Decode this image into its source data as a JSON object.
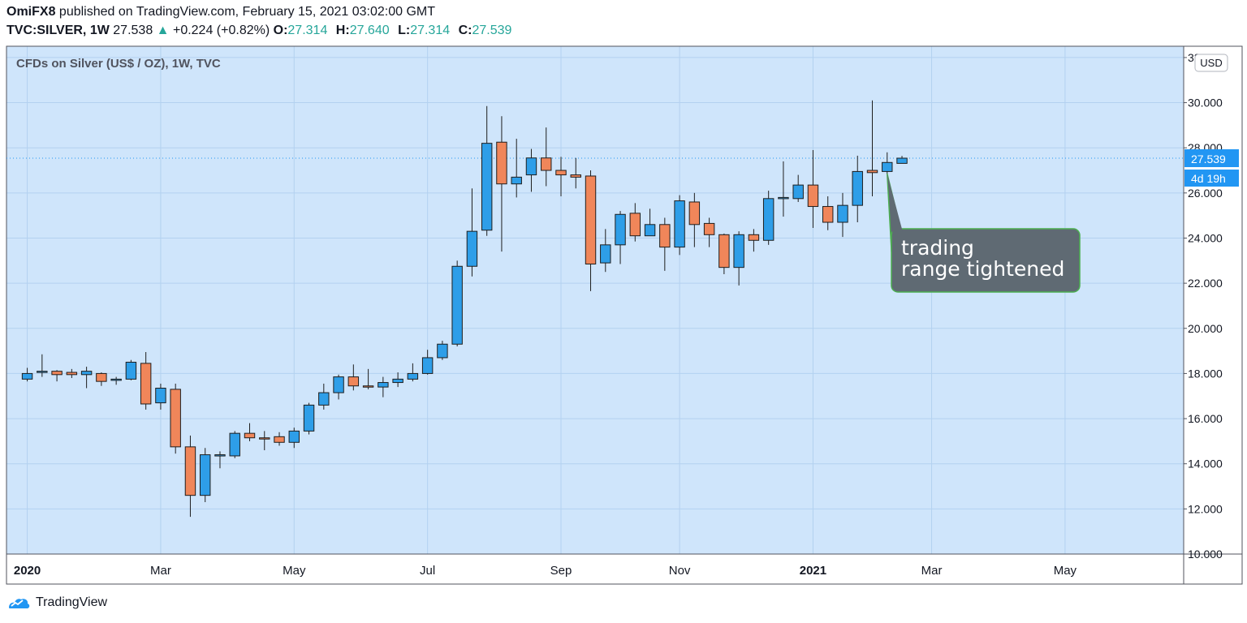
{
  "header": {
    "author": "OmiFX8",
    "published_text": "published on TradingView.com, February 15, 2021 03:02:00 GMT",
    "symbol": "TVC:SILVER, 1W",
    "last": "27.538",
    "change_arrow": "▲",
    "change": "+0.224 (+0.82%)",
    "o_label": "O:",
    "o_value": "27.314",
    "h_label": "H:",
    "h_value": "27.640",
    "l_label": "L:",
    "l_value": "27.314",
    "c_label": "C:",
    "c_value": "27.539"
  },
  "footer": {
    "brand": "TradingView",
    "logo_icon": "tradingview-logo-icon"
  },
  "colors": {
    "plot_bg": "#cfe5fb",
    "grid": "#b3d1f0",
    "up": "#2e9ee8",
    "down": "#f0865a",
    "wick": "#1e1e1e",
    "price_label": "#2196f3",
    "annotation_bg": "#5f6a73",
    "annotation_border": "#4caf50"
  },
  "chart_data": {
    "type": "candlestick",
    "title": "CFDs on Silver (US$ / OZ), 1W, TVC",
    "currency": "USD",
    "y_ticks": [
      "10.000",
      "12.000",
      "14.000",
      "16.000",
      "18.000",
      "20.000",
      "22.000",
      "24.000",
      "26.000",
      "28.000",
      "30.000",
      "32.000"
    ],
    "ylim": [
      10,
      32.5
    ],
    "x_labels": [
      {
        "label": "2020",
        "index": 0,
        "bold": true
      },
      {
        "label": "Mar",
        "index": 9,
        "bold": false
      },
      {
        "label": "May",
        "index": 18,
        "bold": false
      },
      {
        "label": "Jul",
        "index": 27,
        "bold": false
      },
      {
        "label": "Sep",
        "index": 36,
        "bold": false
      },
      {
        "label": "Nov",
        "index": 44,
        "bold": false
      },
      {
        "label": "2021",
        "index": 53,
        "bold": true
      },
      {
        "label": "Mar",
        "index": 61,
        "bold": false
      },
      {
        "label": "May",
        "index": 70,
        "bold": false
      }
    ],
    "x_index_range": [
      -1.4,
      78.0
    ],
    "current_price": "27.539",
    "countdown": "4d 19h",
    "annotation": {
      "lines": [
        "trading",
        "range tightened"
      ],
      "target_index": 58
    },
    "candles": [
      {
        "o": 17.75,
        "h": 18.25,
        "l": 17.65,
        "c": 18.0
      },
      {
        "o": 18.05,
        "h": 18.85,
        "l": 17.85,
        "c": 18.1
      },
      {
        "o": 18.1,
        "h": 18.15,
        "l": 17.65,
        "c": 17.95
      },
      {
        "o": 18.05,
        "h": 18.2,
        "l": 17.8,
        "c": 17.95
      },
      {
        "o": 17.95,
        "h": 18.3,
        "l": 17.35,
        "c": 18.1
      },
      {
        "o": 18.0,
        "h": 18.05,
        "l": 17.45,
        "c": 17.65
      },
      {
        "o": 17.7,
        "h": 17.85,
        "l": 17.5,
        "c": 17.75
      },
      {
        "o": 17.75,
        "h": 18.6,
        "l": 17.7,
        "c": 18.5
      },
      {
        "o": 18.45,
        "h": 18.95,
        "l": 16.4,
        "c": 16.65
      },
      {
        "o": 16.7,
        "h": 17.55,
        "l": 16.4,
        "c": 17.35
      },
      {
        "o": 17.3,
        "h": 17.55,
        "l": 14.45,
        "c": 14.75
      },
      {
        "o": 14.75,
        "h": 15.25,
        "l": 11.65,
        "c": 12.6
      },
      {
        "o": 12.6,
        "h": 14.7,
        "l": 12.3,
        "c": 14.4
      },
      {
        "o": 14.4,
        "h": 14.55,
        "l": 13.8,
        "c": 14.4
      },
      {
        "o": 14.35,
        "h": 15.45,
        "l": 14.25,
        "c": 15.35
      },
      {
        "o": 15.35,
        "h": 15.8,
        "l": 15.0,
        "c": 15.15
      },
      {
        "o": 15.15,
        "h": 15.45,
        "l": 14.6,
        "c": 15.1
      },
      {
        "o": 15.2,
        "h": 15.4,
        "l": 14.8,
        "c": 14.95
      },
      {
        "o": 14.95,
        "h": 15.6,
        "l": 14.7,
        "c": 15.45
      },
      {
        "o": 15.45,
        "h": 16.7,
        "l": 15.3,
        "c": 16.6
      },
      {
        "o": 16.6,
        "h": 17.55,
        "l": 16.4,
        "c": 17.15
      },
      {
        "o": 17.15,
        "h": 17.95,
        "l": 16.85,
        "c": 17.85
      },
      {
        "o": 17.85,
        "h": 18.4,
        "l": 17.25,
        "c": 17.45
      },
      {
        "o": 17.45,
        "h": 18.2,
        "l": 17.3,
        "c": 17.4
      },
      {
        "o": 17.4,
        "h": 17.85,
        "l": 16.95,
        "c": 17.6
      },
      {
        "o": 17.6,
        "h": 18.05,
        "l": 17.4,
        "c": 17.75
      },
      {
        "o": 17.75,
        "h": 18.45,
        "l": 17.65,
        "c": 18.0
      },
      {
        "o": 18.0,
        "h": 19.05,
        "l": 17.95,
        "c": 18.7
      },
      {
        "o": 18.7,
        "h": 19.45,
        "l": 18.6,
        "c": 19.3
      },
      {
        "o": 19.3,
        "h": 23.0,
        "l": 19.2,
        "c": 22.75
      },
      {
        "o": 22.75,
        "h": 26.2,
        "l": 22.3,
        "c": 24.3
      },
      {
        "o": 24.35,
        "h": 29.85,
        "l": 24.1,
        "c": 28.2
      },
      {
        "o": 28.25,
        "h": 29.4,
        "l": 23.4,
        "c": 26.4
      },
      {
        "o": 26.4,
        "h": 28.4,
        "l": 25.8,
        "c": 26.7
      },
      {
        "o": 26.8,
        "h": 27.95,
        "l": 26.05,
        "c": 27.55
      },
      {
        "o": 27.55,
        "h": 28.9,
        "l": 26.3,
        "c": 27.0
      },
      {
        "o": 27.0,
        "h": 27.6,
        "l": 25.85,
        "c": 26.8
      },
      {
        "o": 26.8,
        "h": 27.55,
        "l": 26.2,
        "c": 26.7
      },
      {
        "o": 26.75,
        "h": 27.0,
        "l": 21.65,
        "c": 22.85
      },
      {
        "o": 22.9,
        "h": 24.4,
        "l": 22.5,
        "c": 23.7
      },
      {
        "o": 23.7,
        "h": 25.2,
        "l": 22.85,
        "c": 25.05
      },
      {
        "o": 25.1,
        "h": 25.55,
        "l": 23.85,
        "c": 24.1
      },
      {
        "o": 24.1,
        "h": 25.3,
        "l": 24.1,
        "c": 24.6
      },
      {
        "o": 24.6,
        "h": 24.9,
        "l": 22.55,
        "c": 23.6
      },
      {
        "o": 23.6,
        "h": 25.9,
        "l": 23.25,
        "c": 25.65
      },
      {
        "o": 25.6,
        "h": 26.0,
        "l": 23.6,
        "c": 24.6
      },
      {
        "o": 24.65,
        "h": 24.9,
        "l": 23.6,
        "c": 24.15
      },
      {
        "o": 24.15,
        "h": 24.2,
        "l": 22.4,
        "c": 22.7
      },
      {
        "o": 22.7,
        "h": 24.3,
        "l": 21.9,
        "c": 24.15
      },
      {
        "o": 24.15,
        "h": 24.4,
        "l": 23.4,
        "c": 23.9
      },
      {
        "o": 23.9,
        "h": 26.1,
        "l": 23.7,
        "c": 25.75
      },
      {
        "o": 25.75,
        "h": 27.4,
        "l": 24.95,
        "c": 25.8
      },
      {
        "o": 25.75,
        "h": 26.8,
        "l": 25.6,
        "c": 26.35
      },
      {
        "o": 26.35,
        "h": 27.9,
        "l": 24.45,
        "c": 25.4
      },
      {
        "o": 25.4,
        "h": 25.85,
        "l": 24.35,
        "c": 24.7
      },
      {
        "o": 24.7,
        "h": 26.0,
        "l": 24.05,
        "c": 25.45
      },
      {
        "o": 25.45,
        "h": 27.65,
        "l": 24.7,
        "c": 26.95
      },
      {
        "o": 27.0,
        "h": 30.1,
        "l": 25.85,
        "c": 26.9
      },
      {
        "o": 26.95,
        "h": 27.8,
        "l": 26.8,
        "c": 27.35
      },
      {
        "o": 27.31,
        "h": 27.64,
        "l": 27.31,
        "c": 27.54
      }
    ]
  }
}
